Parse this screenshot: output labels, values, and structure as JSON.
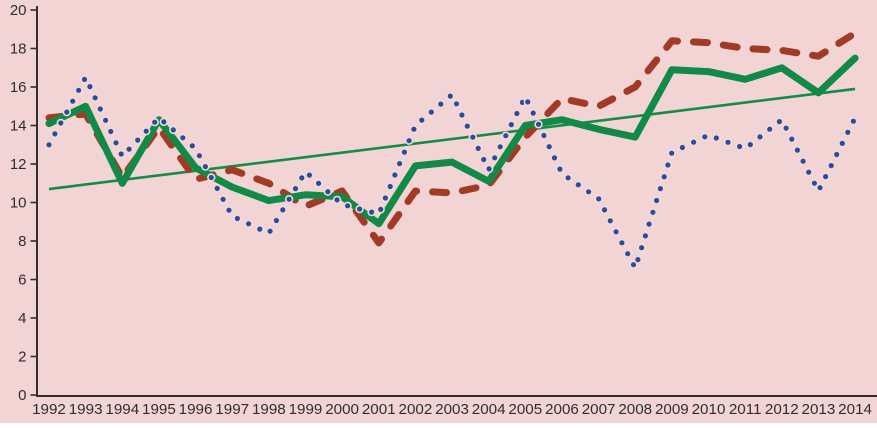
{
  "chart_data": {
    "type": "line",
    "title": "",
    "xlabel": "",
    "ylabel": "",
    "background_color": "#F2D4D4",
    "axis_color": "#2E2E2E",
    "label_color": "#2E2E2E",
    "grid": false,
    "legend": "none",
    "ylim": [
      0,
      20
    ],
    "ytick_step": 2,
    "ytick_labels": [
      "0",
      "2",
      "4",
      "6",
      "8",
      "10",
      "12",
      "14",
      "16",
      "18",
      "20"
    ],
    "categories": [
      "1992",
      "1993",
      "1994",
      "1995",
      "1996",
      "1997",
      "1998",
      "1999",
      "2000",
      "2001",
      "2002",
      "2003",
      "2004",
      "2005",
      "2006",
      "2007",
      "2008",
      "2009",
      "2010",
      "2011",
      "2012",
      "2013",
      "2014"
    ],
    "series": [
      {
        "name": "blue-dotted-series",
        "style": "dotted",
        "color": "#2D4B9B",
        "halo_color": "#F1DADA",
        "values": [
          13.0,
          16.5,
          12.4,
          14.4,
          12.8,
          9.3,
          8.4,
          11.6,
          9.9,
          9.4,
          14.0,
          15.6,
          11.7,
          15.5,
          11.5,
          10.2,
          6.6,
          12.6,
          13.5,
          12.8,
          14.3,
          10.6,
          14.4
        ]
      },
      {
        "name": "red-dashed-series",
        "style": "dashed",
        "color": "#A23B25",
        "values": [
          14.4,
          14.6,
          11.3,
          13.9,
          11.2,
          11.7,
          11.0,
          9.8,
          10.6,
          7.9,
          10.6,
          10.5,
          10.9,
          13.4,
          15.4,
          15.0,
          16.0,
          18.4,
          18.3,
          18.0,
          17.9,
          17.6,
          18.8
        ]
      },
      {
        "name": "green-solid-series",
        "style": "solid-thick",
        "color": "#128A47",
        "values": [
          14.1,
          15.0,
          11.0,
          14.3,
          11.8,
          10.8,
          10.1,
          10.4,
          10.3,
          8.9,
          11.9,
          12.1,
          11.1,
          14.0,
          14.3,
          13.8,
          13.4,
          16.9,
          16.8,
          16.4,
          17.0,
          15.7,
          17.5
        ]
      },
      {
        "name": "green-trendline",
        "style": "solid-thin",
        "color": "#148B46",
        "trend": true,
        "start_value": 10.7,
        "end_value": 15.9
      }
    ]
  }
}
